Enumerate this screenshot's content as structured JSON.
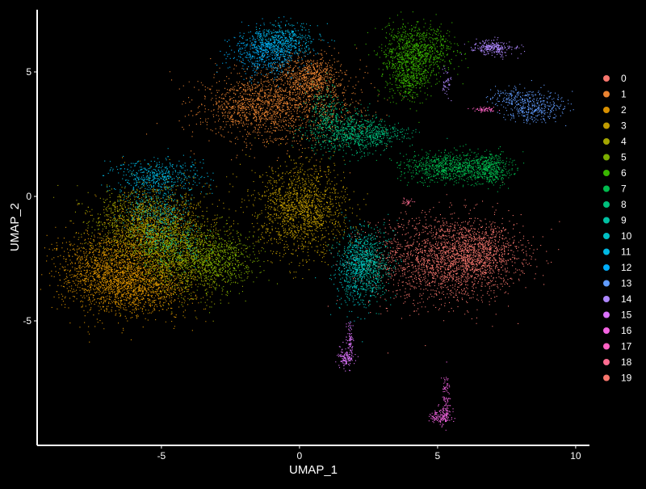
{
  "chart_data": {
    "type": "scatter",
    "title": "",
    "xlabel": "UMAP_1",
    "ylabel": "UMAP_2",
    "xlim": [
      -9.5,
      10.5
    ],
    "ylim": [
      -10,
      7.5
    ],
    "xticks": [
      -5,
      0,
      5,
      10
    ],
    "yticks": [
      -5,
      0,
      5
    ],
    "grid": false,
    "legend_position": "right",
    "background": "#000000",
    "axis_color": "#ffffff",
    "series": [
      {
        "name": "0",
        "color": "#F8766D",
        "n": 2600,
        "blobs": [
          {
            "cx": 5.2,
            "cy": -2.5,
            "sx": 1.3,
            "sy": 0.9,
            "w": 0.7
          },
          {
            "cx": 6.5,
            "cy": -2.3,
            "sx": 0.8,
            "sy": 0.6,
            "w": 0.3
          }
        ]
      },
      {
        "name": "1",
        "color": "#EA8331",
        "n": 2500,
        "blobs": [
          {
            "cx": -0.5,
            "cy": 3.7,
            "sx": 1.4,
            "sy": 0.8,
            "w": 0.55
          },
          {
            "cx": -1.8,
            "cy": 3.6,
            "sx": 0.8,
            "sy": 0.5,
            "w": 0.2
          },
          {
            "cx": 0.4,
            "cy": 4.8,
            "sx": 0.5,
            "sy": 0.45,
            "w": 0.25
          }
        ]
      },
      {
        "name": "2",
        "color": "#D89000",
        "n": 3200,
        "blobs": [
          {
            "cx": -7.0,
            "cy": -3.0,
            "sx": 0.9,
            "sy": 0.8,
            "w": 0.45
          },
          {
            "cx": -5.6,
            "cy": -3.5,
            "sx": 0.9,
            "sy": 0.6,
            "w": 0.35
          },
          {
            "cx": -5.5,
            "cy": -1.5,
            "sx": 0.8,
            "sy": 0.8,
            "w": 0.2
          }
        ]
      },
      {
        "name": "3",
        "color": "#C09B00",
        "n": 2200,
        "blobs": [
          {
            "cx": 0.1,
            "cy": -0.5,
            "sx": 0.8,
            "sy": 0.9,
            "w": 0.7
          },
          {
            "cx": -4.6,
            "cy": -1.2,
            "sx": 0.9,
            "sy": 0.9,
            "w": 0.3
          }
        ]
      },
      {
        "name": "4",
        "color": "#A3A500",
        "n": 1600,
        "blobs": [
          {
            "cx": -4.2,
            "cy": -2.5,
            "sx": 0.9,
            "sy": 0.8,
            "w": 0.5
          },
          {
            "cx": -6.0,
            "cy": -1.0,
            "sx": 0.8,
            "sy": 0.7,
            "w": 0.5
          }
        ]
      },
      {
        "name": "5",
        "color": "#7CAE00",
        "n": 1200,
        "blobs": [
          {
            "cx": -3.0,
            "cy": -2.6,
            "sx": 0.7,
            "sy": 0.6,
            "w": 0.6
          },
          {
            "cx": -4.8,
            "cy": -2.0,
            "sx": 0.7,
            "sy": 0.7,
            "w": 0.4
          }
        ]
      },
      {
        "name": "6",
        "color": "#39B600",
        "n": 1300,
        "blobs": [
          {
            "cx": 4.3,
            "cy": 5.9,
            "sx": 0.65,
            "sy": 0.5,
            "w": 0.65
          },
          {
            "cx": 3.9,
            "cy": 4.8,
            "sx": 0.4,
            "sy": 0.5,
            "w": 0.35
          }
        ]
      },
      {
        "name": "7",
        "color": "#00BB4E",
        "n": 1200,
        "blobs": [
          {
            "cx": 5.5,
            "cy": 1.2,
            "sx": 0.9,
            "sy": 0.3,
            "w": 0.7
          },
          {
            "cx": 6.9,
            "cy": 1.1,
            "sx": 0.35,
            "sy": 0.3,
            "w": 0.3
          }
        ]
      },
      {
        "name": "8",
        "color": "#00BF7D",
        "n": 1100,
        "blobs": [
          {
            "cx": 1.6,
            "cy": 2.6,
            "sx": 0.7,
            "sy": 0.45,
            "w": 0.6
          },
          {
            "cx": 2.8,
            "cy": 2.5,
            "sx": 0.6,
            "sy": 0.25,
            "w": 0.25
          },
          {
            "cx": 0.9,
            "cy": 3.6,
            "sx": 0.3,
            "sy": 0.5,
            "w": 0.15
          }
        ]
      },
      {
        "name": "9",
        "color": "#00C1A3",
        "n": 900,
        "blobs": [
          {
            "cx": 2.4,
            "cy": -2.7,
            "sx": 0.45,
            "sy": 0.7,
            "w": 0.8
          },
          {
            "cx": -4.6,
            "cy": -1.8,
            "sx": 0.6,
            "sy": 0.5,
            "w": 0.2
          }
        ]
      },
      {
        "name": "10",
        "color": "#00BFC4",
        "n": 700,
        "blobs": [
          {
            "cx": 2.0,
            "cy": -3.0,
            "sx": 0.35,
            "sy": 0.8,
            "w": 0.6
          },
          {
            "cx": -5.2,
            "cy": -0.6,
            "sx": 0.6,
            "sy": 0.5,
            "w": 0.4
          }
        ]
      },
      {
        "name": "11",
        "color": "#00B9E3",
        "n": 900,
        "blobs": [
          {
            "cx": -5.2,
            "cy": 0.8,
            "sx": 0.8,
            "sy": 0.35,
            "w": 0.55
          },
          {
            "cx": -0.6,
            "cy": 6.3,
            "sx": 0.6,
            "sy": 0.35,
            "w": 0.45
          }
        ]
      },
      {
        "name": "12",
        "color": "#00ADFA",
        "n": 600,
        "blobs": [
          {
            "cx": -1.2,
            "cy": 5.8,
            "sx": 0.6,
            "sy": 0.45,
            "w": 1.0
          }
        ]
      },
      {
        "name": "13",
        "color": "#619CFF",
        "n": 500,
        "blobs": [
          {
            "cx": 8.5,
            "cy": 3.6,
            "sx": 0.6,
            "sy": 0.3,
            "w": 0.75
          },
          {
            "cx": 7.6,
            "cy": 4.0,
            "sx": 0.4,
            "sy": 0.2,
            "w": 0.25
          }
        ]
      },
      {
        "name": "14",
        "color": "#AE87FF",
        "n": 300,
        "blobs": [
          {
            "cx": 7.0,
            "cy": 6.0,
            "sx": 0.4,
            "sy": 0.15,
            "w": 0.85
          },
          {
            "cx": 5.3,
            "cy": 4.5,
            "sx": 0.1,
            "sy": 0.3,
            "w": 0.15
          }
        ]
      },
      {
        "name": "15",
        "color": "#DB72FB",
        "n": 200,
        "blobs": [
          {
            "cx": 1.7,
            "cy": -6.5,
            "sx": 0.15,
            "sy": 0.2,
            "w": 0.6
          },
          {
            "cx": 1.8,
            "cy": -5.8,
            "sx": 0.06,
            "sy": 0.4,
            "w": 0.4
          }
        ]
      },
      {
        "name": "16",
        "color": "#F564E3",
        "n": 220,
        "blobs": [
          {
            "cx": 5.1,
            "cy": -8.8,
            "sx": 0.2,
            "sy": 0.15,
            "w": 0.6
          },
          {
            "cx": 5.3,
            "cy": -8.0,
            "sx": 0.07,
            "sy": 0.45,
            "w": 0.4
          }
        ]
      },
      {
        "name": "17",
        "color": "#FF61C3",
        "n": 60,
        "blobs": [
          {
            "cx": 6.7,
            "cy": 3.5,
            "sx": 0.2,
            "sy": 0.06,
            "w": 1.0
          }
        ]
      },
      {
        "name": "18",
        "color": "#FF6C91",
        "n": 25,
        "blobs": [
          {
            "cx": 3.9,
            "cy": -0.2,
            "sx": 0.1,
            "sy": 0.05,
            "w": 1.0
          }
        ]
      },
      {
        "name": "19",
        "color": "#F8766D",
        "n": 0,
        "blobs": []
      }
    ]
  }
}
